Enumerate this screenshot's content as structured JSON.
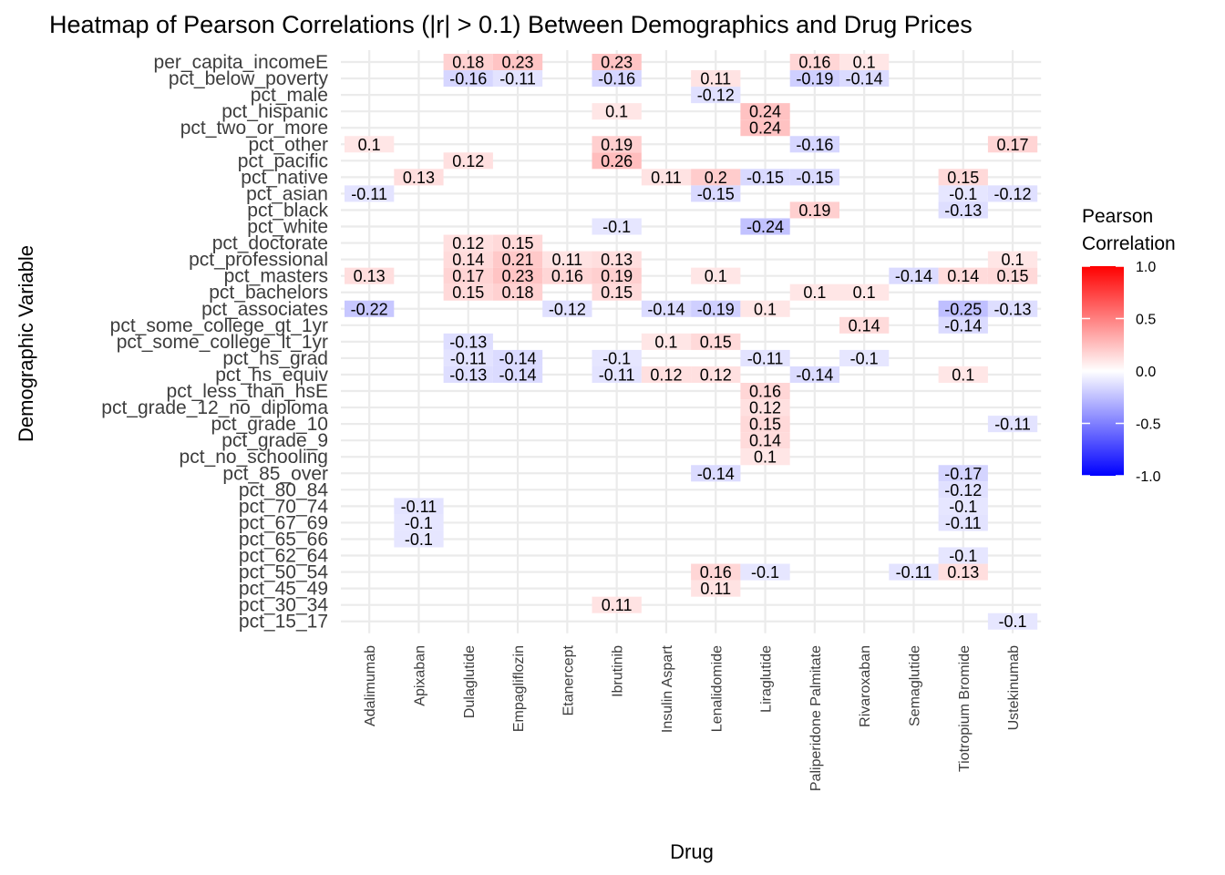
{
  "chart_data": {
    "type": "heatmap",
    "title": "Heatmap of Pearson Correlations (|r| > 0.1) Between Demographics and Drug Prices",
    "xlabel": "Drug",
    "ylabel": "Demographic Variable",
    "x_categories": [
      "Adalimumab",
      "Apixaban",
      "Dulaglutide",
      "Empagliflozin",
      "Etanercept",
      "Ibrutinib",
      "Insulin Aspart",
      "Lenalidomide",
      "Liraglutide",
      "Paliperidone Palmitate",
      "Rivaroxaban",
      "Semaglutide",
      "Tiotropium Bromide",
      "Ustekinumab"
    ],
    "y_categories": [
      "per_capita_incomeE",
      "pct_below_poverty",
      "pct_male",
      "pct_hispanic",
      "pct_two_or_more",
      "pct_other",
      "pct_pacific",
      "pct_native",
      "pct_asian",
      "pct_black",
      "pct_white",
      "pct_doctorate",
      "pct_professional",
      "pct_masters",
      "pct_bachelors",
      "pct_associates",
      "pct_some_college_gt_1yr",
      "pct_some_college_lt_1yr",
      "pct_hs_grad",
      "pct_hs_equiv",
      "pct_less_than_hsE",
      "pct_grade_12_no_diploma",
      "pct_grade_10",
      "pct_grade_9",
      "pct_no_schooling",
      "pct_85_over",
      "pct_80_84",
      "pct_70_74",
      "pct_67_69",
      "pct_65_66",
      "pct_62_64",
      "pct_50_54",
      "pct_45_49",
      "pct_30_34",
      "pct_15_17"
    ],
    "cells": [
      [
        "Dulaglutide",
        "per_capita_incomeE",
        0.18
      ],
      [
        "Empagliflozin",
        "per_capita_incomeE",
        0.23
      ],
      [
        "Ibrutinib",
        "per_capita_incomeE",
        0.23
      ],
      [
        "Paliperidone Palmitate",
        "per_capita_incomeE",
        0.16
      ],
      [
        "Rivaroxaban",
        "per_capita_incomeE",
        0.1
      ],
      [
        "Dulaglutide",
        "pct_below_poverty",
        -0.16
      ],
      [
        "Empagliflozin",
        "pct_below_poverty",
        -0.11
      ],
      [
        "Ibrutinib",
        "pct_below_poverty",
        -0.16
      ],
      [
        "Lenalidomide",
        "pct_below_poverty",
        0.11
      ],
      [
        "Paliperidone Palmitate",
        "pct_below_poverty",
        -0.19
      ],
      [
        "Rivaroxaban",
        "pct_below_poverty",
        -0.14
      ],
      [
        "Lenalidomide",
        "pct_male",
        -0.12
      ],
      [
        "Ibrutinib",
        "pct_hispanic",
        0.1
      ],
      [
        "Liraglutide",
        "pct_hispanic",
        0.24
      ],
      [
        "Liraglutide",
        "pct_two_or_more",
        0.24
      ],
      [
        "Adalimumab",
        "pct_other",
        0.1
      ],
      [
        "Ibrutinib",
        "pct_other",
        0.19
      ],
      [
        "Paliperidone Palmitate",
        "pct_other",
        -0.16
      ],
      [
        "Ustekinumab",
        "pct_other",
        0.17
      ],
      [
        "Dulaglutide",
        "pct_pacific",
        0.12
      ],
      [
        "Ibrutinib",
        "pct_pacific",
        0.26
      ],
      [
        "Apixaban",
        "pct_native",
        0.13
      ],
      [
        "Insulin Aspart",
        "pct_native",
        0.11
      ],
      [
        "Lenalidomide",
        "pct_native",
        0.2
      ],
      [
        "Liraglutide",
        "pct_native",
        -0.15
      ],
      [
        "Paliperidone Palmitate",
        "pct_native",
        -0.15
      ],
      [
        "Tiotropium Bromide",
        "pct_native",
        0.15
      ],
      [
        "Adalimumab",
        "pct_asian",
        -0.11
      ],
      [
        "Lenalidomide",
        "pct_asian",
        -0.15
      ],
      [
        "Tiotropium Bromide",
        "pct_asian",
        -0.1
      ],
      [
        "Ustekinumab",
        "pct_asian",
        -0.12
      ],
      [
        "Paliperidone Palmitate",
        "pct_black",
        0.19
      ],
      [
        "Tiotropium Bromide",
        "pct_black",
        -0.13
      ],
      [
        "Ibrutinib",
        "pct_white",
        -0.1
      ],
      [
        "Liraglutide",
        "pct_white",
        -0.24
      ],
      [
        "Dulaglutide",
        "pct_doctorate",
        0.12
      ],
      [
        "Empagliflozin",
        "pct_doctorate",
        0.15
      ],
      [
        "Dulaglutide",
        "pct_professional",
        0.14
      ],
      [
        "Empagliflozin",
        "pct_professional",
        0.21
      ],
      [
        "Etanercept",
        "pct_professional",
        0.11
      ],
      [
        "Ibrutinib",
        "pct_professional",
        0.13
      ],
      [
        "Ustekinumab",
        "pct_professional",
        0.1
      ],
      [
        "Adalimumab",
        "pct_masters",
        0.13
      ],
      [
        "Dulaglutide",
        "pct_masters",
        0.17
      ],
      [
        "Empagliflozin",
        "pct_masters",
        0.23
      ],
      [
        "Etanercept",
        "pct_masters",
        0.16
      ],
      [
        "Ibrutinib",
        "pct_masters",
        0.19
      ],
      [
        "Lenalidomide",
        "pct_masters",
        0.1
      ],
      [
        "Semaglutide",
        "pct_masters",
        -0.14
      ],
      [
        "Tiotropium Bromide",
        "pct_masters",
        0.14
      ],
      [
        "Ustekinumab",
        "pct_masters",
        0.15
      ],
      [
        "Dulaglutide",
        "pct_bachelors",
        0.15
      ],
      [
        "Empagliflozin",
        "pct_bachelors",
        0.18
      ],
      [
        "Ibrutinib",
        "pct_bachelors",
        0.15
      ],
      [
        "Paliperidone Palmitate",
        "pct_bachelors",
        0.1
      ],
      [
        "Rivaroxaban",
        "pct_bachelors",
        0.1
      ],
      [
        "Adalimumab",
        "pct_associates",
        -0.22
      ],
      [
        "Etanercept",
        "pct_associates",
        -0.12
      ],
      [
        "Insulin Aspart",
        "pct_associates",
        -0.14
      ],
      [
        "Lenalidomide",
        "pct_associates",
        -0.19
      ],
      [
        "Liraglutide",
        "pct_associates",
        0.1
      ],
      [
        "Tiotropium Bromide",
        "pct_associates",
        -0.25
      ],
      [
        "Ustekinumab",
        "pct_associates",
        -0.13
      ],
      [
        "Rivaroxaban",
        "pct_some_college_gt_1yr",
        0.14
      ],
      [
        "Tiotropium Bromide",
        "pct_some_college_gt_1yr",
        -0.14
      ],
      [
        "Dulaglutide",
        "pct_some_college_lt_1yr",
        -0.13
      ],
      [
        "Insulin Aspart",
        "pct_some_college_lt_1yr",
        0.1
      ],
      [
        "Lenalidomide",
        "pct_some_college_lt_1yr",
        0.15
      ],
      [
        "Dulaglutide",
        "pct_hs_grad",
        -0.11
      ],
      [
        "Empagliflozin",
        "pct_hs_grad",
        -0.14
      ],
      [
        "Ibrutinib",
        "pct_hs_grad",
        -0.1
      ],
      [
        "Liraglutide",
        "pct_hs_grad",
        -0.11
      ],
      [
        "Rivaroxaban",
        "pct_hs_grad",
        -0.1
      ],
      [
        "Dulaglutide",
        "pct_hs_equiv",
        -0.13
      ],
      [
        "Empagliflozin",
        "pct_hs_equiv",
        -0.14
      ],
      [
        "Ibrutinib",
        "pct_hs_equiv",
        -0.11
      ],
      [
        "Insulin Aspart",
        "pct_hs_equiv",
        0.12
      ],
      [
        "Lenalidomide",
        "pct_hs_equiv",
        0.12
      ],
      [
        "Paliperidone Palmitate",
        "pct_hs_equiv",
        -0.14
      ],
      [
        "Tiotropium Bromide",
        "pct_hs_equiv",
        0.1
      ],
      [
        "Liraglutide",
        "pct_less_than_hsE",
        0.16
      ],
      [
        "Liraglutide",
        "pct_grade_12_no_diploma",
        0.12
      ],
      [
        "Liraglutide",
        "pct_grade_10",
        0.15
      ],
      [
        "Ustekinumab",
        "pct_grade_10",
        -0.11
      ],
      [
        "Liraglutide",
        "pct_grade_9",
        0.14
      ],
      [
        "Liraglutide",
        "pct_no_schooling",
        0.1
      ],
      [
        "Lenalidomide",
        "pct_85_over",
        -0.14
      ],
      [
        "Tiotropium Bromide",
        "pct_85_over",
        -0.17
      ],
      [
        "Tiotropium Bromide",
        "pct_80_84",
        -0.12
      ],
      [
        "Apixaban",
        "pct_70_74",
        -0.11
      ],
      [
        "Tiotropium Bromide",
        "pct_70_74",
        -0.1
      ],
      [
        "Apixaban",
        "pct_67_69",
        -0.1
      ],
      [
        "Tiotropium Bromide",
        "pct_67_69",
        -0.11
      ],
      [
        "Apixaban",
        "pct_65_66",
        -0.1
      ],
      [
        "Tiotropium Bromide",
        "pct_62_64",
        -0.1
      ],
      [
        "Lenalidomide",
        "pct_50_54",
        0.16
      ],
      [
        "Liraglutide",
        "pct_50_54",
        -0.1
      ],
      [
        "Semaglutide",
        "pct_50_54",
        -0.11
      ],
      [
        "Tiotropium Bromide",
        "pct_50_54",
        0.13
      ],
      [
        "Lenalidomide",
        "pct_45_49",
        0.11
      ],
      [
        "Ibrutinib",
        "pct_30_34",
        0.11
      ],
      [
        "Ustekinumab",
        "pct_15_17",
        -0.1
      ]
    ],
    "color_scale": {
      "low": "#0000ff",
      "mid": "#ffffff",
      "high": "#ff0000",
      "limits": [
        -1,
        1
      ]
    },
    "legend": {
      "title_line1": "Pearson",
      "title_line2": "Correlation",
      "ticks": [
        1.0,
        0.5,
        0.0,
        -0.5,
        -1.0
      ],
      "tick_labels": [
        "1.0",
        "0.5",
        "0.0",
        "-0.5",
        "-1.0"
      ],
      "placement": "right"
    },
    "grid": true,
    "background": "#ffffff",
    "grid_color": "#ebebeb"
  }
}
